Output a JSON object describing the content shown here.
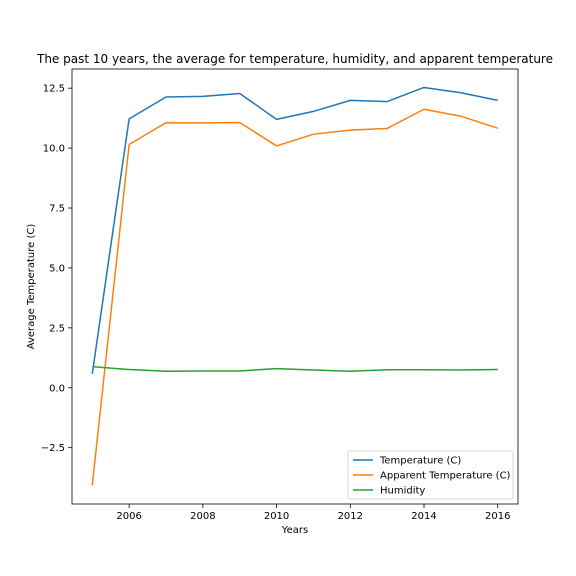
{
  "chart_data": {
    "type": "line",
    "title": "The past 10 years, the average for temperature, humidity, and apparent temperature",
    "xlabel": "Years",
    "ylabel": "Average Temperature (C)",
    "x": [
      2005,
      2006,
      2007,
      2008,
      2009,
      2010,
      2011,
      2012,
      2013,
      2014,
      2015,
      2016
    ],
    "xlim": [
      2004.45,
      2016.55
    ],
    "ylim": [
      -4.85,
      13.3
    ],
    "xticks": [
      2006,
      2008,
      2010,
      2012,
      2014,
      2016
    ],
    "yticks": [
      -2.5,
      0.0,
      2.5,
      5.0,
      7.5,
      10.0,
      12.5
    ],
    "ytick_labels": [
      "−2.5",
      "0.0",
      "2.5",
      "5.0",
      "7.5",
      "10.0",
      "12.5"
    ],
    "grid": false,
    "legend_position": "lower-right",
    "series": [
      {
        "name": "Temperature (C)",
        "color": "#1f77b4",
        "values": [
          0.58,
          11.22,
          12.13,
          12.16,
          12.28,
          11.2,
          11.53,
          11.99,
          11.94,
          12.53,
          12.31,
          11.99
        ]
      },
      {
        "name": "Apparent Temperature (C)",
        "color": "#ff7f0e",
        "values": [
          -4.07,
          10.15,
          11.06,
          11.05,
          11.07,
          10.09,
          10.58,
          10.75,
          10.82,
          11.62,
          11.33,
          10.83
        ]
      },
      {
        "name": "Humidity",
        "color": "#2ca02c",
        "values": [
          0.88,
          0.76,
          0.69,
          0.7,
          0.7,
          0.8,
          0.74,
          0.69,
          0.75,
          0.75,
          0.74,
          0.76
        ]
      }
    ]
  }
}
